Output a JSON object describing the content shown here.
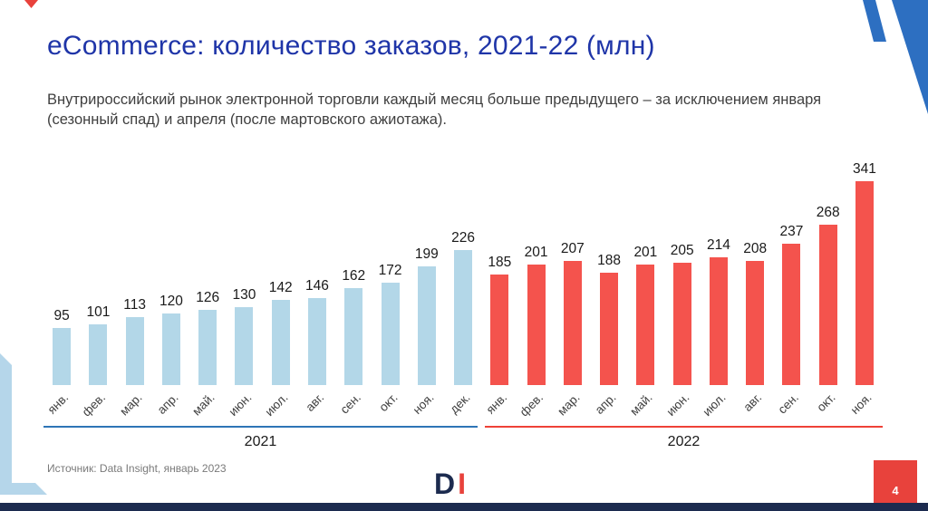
{
  "slide": {
    "title": "eCommerce: количество заказов, 2021-22 (млн)",
    "subtitle": "Внутрироссийский рынок электронной торговли каждый месяц больше предыдущего – за исключением января (сезонный спад) и апреля (после мартовского ажиотажа).",
    "source": "Источник: Data Insight, январь 2023",
    "page_number": "4",
    "logo": {
      "letter_d": "D",
      "letter_i": "I"
    }
  },
  "colors": {
    "title_blue": "#1f35a8",
    "bar_2021": "#b3d7e8",
    "bar_2022": "#f4534d",
    "year_line_2021": "#2e75b6",
    "year_line_2022": "#ee4137",
    "footer_navy": "#1c2b4f",
    "accent_red": "#e8423c",
    "corner_blue": "#2d6fc1",
    "corner_light_blue": "#b5d6ea"
  },
  "chart_data": {
    "type": "bar",
    "title": "eCommerce: количество заказов, 2021-22 (млн)",
    "ylim": [
      0,
      341
    ],
    "grid": false,
    "data_labels": true,
    "legend": "none",
    "series": [
      {
        "name": "2021",
        "color": "#b3d7e8",
        "categories": [
          "янв.",
          "фев.",
          "мар.",
          "апр.",
          "май.",
          "июн.",
          "июл.",
          "авг.",
          "сен.",
          "окт.",
          "ноя.",
          "дек."
        ],
        "values": [
          95,
          101,
          113,
          120,
          126,
          130,
          142,
          146,
          162,
          172,
          199,
          226
        ]
      },
      {
        "name": "2022",
        "color": "#f4534d",
        "categories": [
          "янв.",
          "фев.",
          "мар.",
          "апр.",
          "май.",
          "июн.",
          "июл.",
          "авг.",
          "сен.",
          "окт.",
          "ноя."
        ],
        "values": [
          185,
          201,
          207,
          188,
          201,
          205,
          214,
          208,
          237,
          268,
          341
        ]
      }
    ],
    "x_axis_groups": [
      {
        "label": "2021",
        "months": 12,
        "line_color": "#2e75b6"
      },
      {
        "label": "2022",
        "months": 11,
        "line_color": "#ee4137"
      }
    ]
  }
}
